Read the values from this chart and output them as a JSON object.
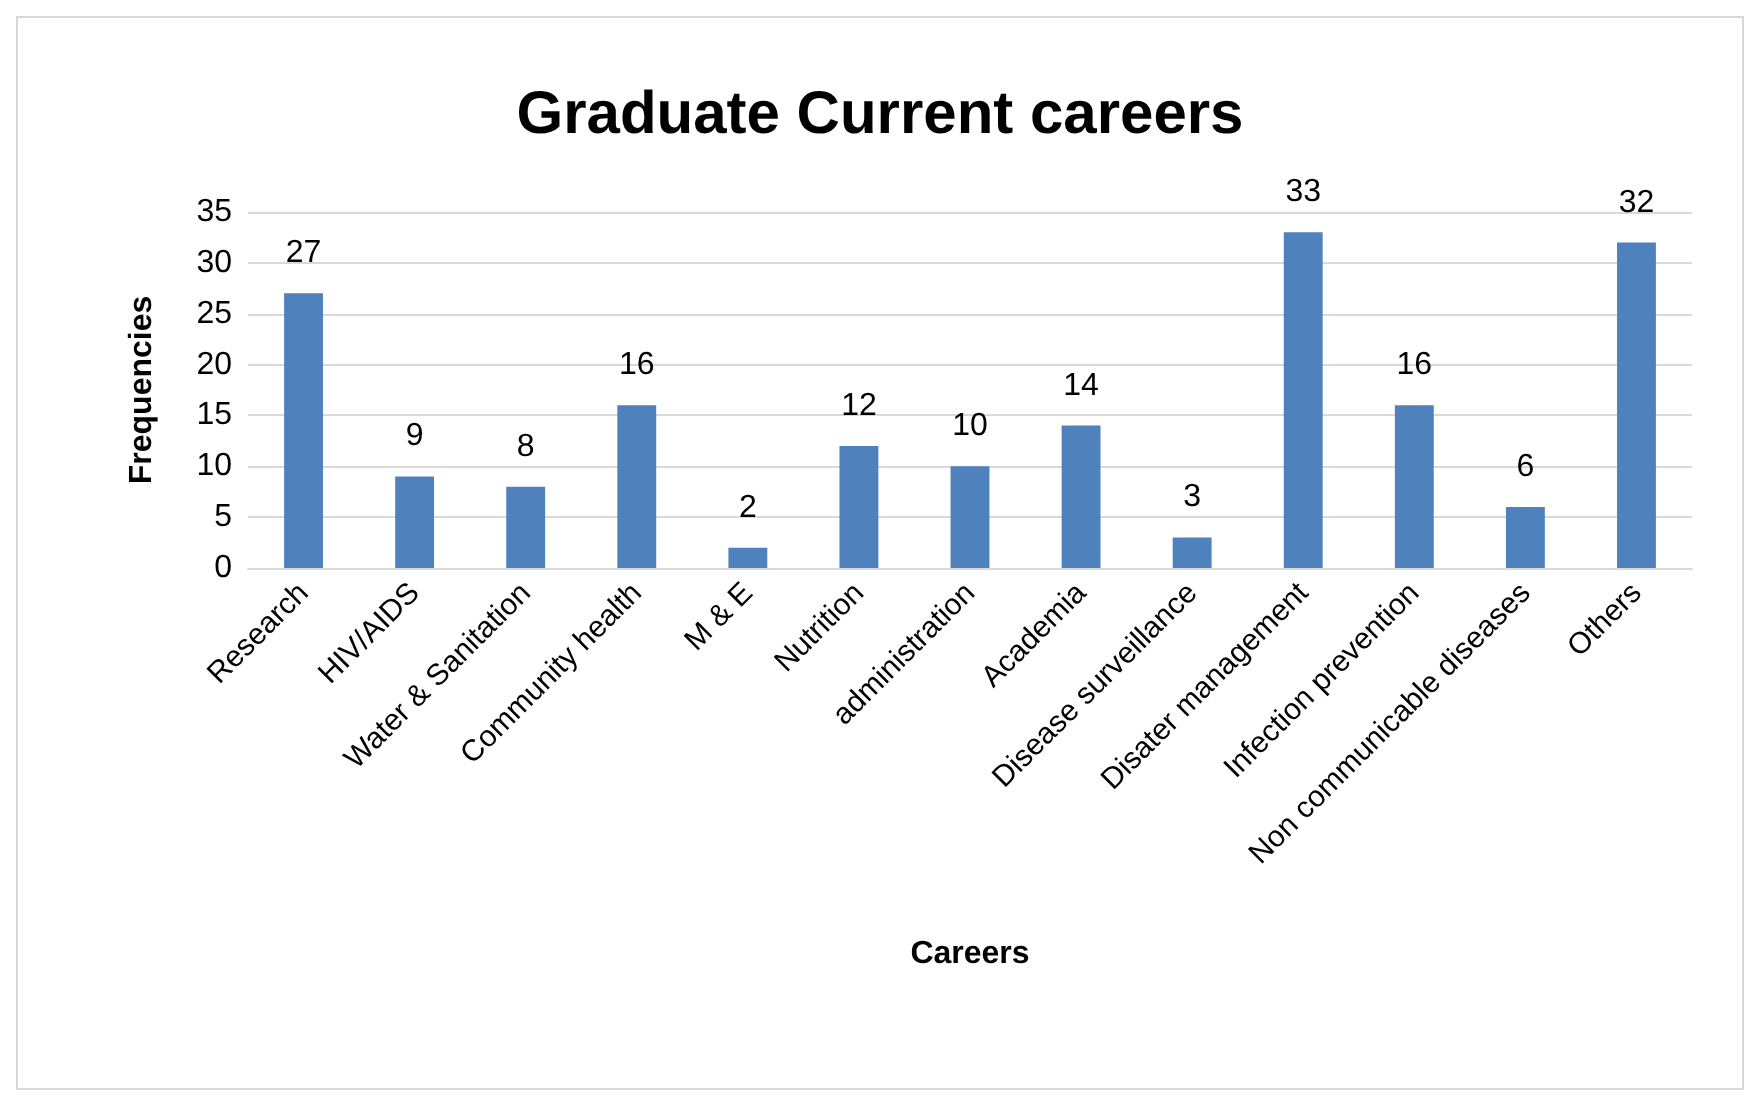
{
  "chart_data": {
    "type": "bar",
    "title": "Graduate Current careers",
    "xlabel": "Careers",
    "ylabel": "Frequencies",
    "categories": [
      "Research",
      "HIV/AIDS",
      "Water & Sanitation",
      "Community health",
      "M & E",
      "Nutrition",
      "administration",
      "Academia",
      "Disease surveillance",
      "Disater management",
      "Infection prevention",
      "Non communicable diseases",
      "Others"
    ],
    "values": [
      27,
      9,
      8,
      16,
      2,
      12,
      10,
      14,
      3,
      33,
      16,
      6,
      32
    ],
    "color": "#4f81bd",
    "ylim": [
      0,
      35
    ],
    "yticks": [
      0,
      5,
      10,
      15,
      20,
      25,
      30,
      35
    ],
    "grid": "y",
    "data_labels": true
  }
}
